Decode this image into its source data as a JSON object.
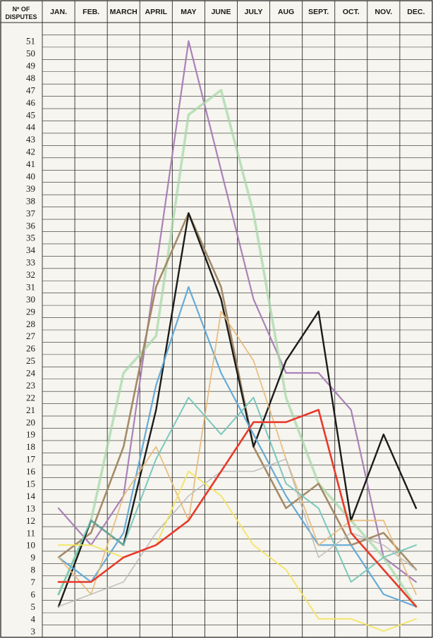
{
  "chart_data": {
    "type": "line",
    "title": "",
    "ylabel": "Nº OF DISPUTES",
    "xlabel": "",
    "categories": [
      "JAN.",
      "FEB.",
      "MARCH",
      "APRIL",
      "MAY",
      "JUNE",
      "JULY",
      "AUG",
      "SEPT.",
      "OCT.",
      "NOV.",
      "DEC."
    ],
    "y_ticks": [
      "3",
      "4",
      "5",
      "6",
      "7",
      "8",
      "9",
      "10",
      "11",
      "12",
      "13",
      "14",
      "15",
      "16",
      "17",
      "18",
      "19",
      "20",
      "21",
      "22",
      "23",
      "24",
      "25",
      "26",
      "27",
      "28",
      "29",
      "30",
      "31",
      "32",
      "33",
      "34",
      "35",
      "36",
      "37",
      "38",
      "39",
      "40",
      "41",
      "42",
      "43",
      "44",
      "45",
      "46",
      "47",
      "48",
      "49",
      "50",
      "51"
    ],
    "ylim": [
      2.5,
      52.5
    ],
    "grid": true,
    "legend": "none",
    "series": [
      {
        "color": "#a77bb5",
        "width": 2.2,
        "opacity": 0.95,
        "points": [
          [
            0,
            13
          ],
          [
            1,
            10
          ],
          [
            2,
            14
          ],
          [
            4,
            51
          ],
          [
            6,
            30
          ],
          [
            7,
            24
          ],
          [
            8,
            24
          ],
          [
            9,
            21
          ],
          [
            10,
            9
          ],
          [
            11,
            7
          ]
        ]
      },
      {
        "color": "#a8d8a8",
        "width": 3.5,
        "opacity": 0.75,
        "points": [
          [
            0,
            6
          ],
          [
            1,
            12
          ],
          [
            2,
            24
          ],
          [
            3,
            27
          ],
          [
            4,
            45
          ],
          [
            5,
            47
          ],
          [
            6,
            37
          ],
          [
            7,
            22
          ],
          [
            8,
            15
          ],
          [
            9,
            12
          ],
          [
            10,
            9
          ],
          [
            11,
            5
          ]
        ]
      },
      {
        "color": "#a08560",
        "width": 2.6,
        "opacity": 0.95,
        "points": [
          [
            0,
            9
          ],
          [
            1,
            11
          ],
          [
            2,
            18
          ],
          [
            3,
            31
          ],
          [
            4,
            37
          ],
          [
            5,
            31
          ],
          [
            6,
            18
          ],
          [
            7,
            13
          ],
          [
            8,
            15
          ],
          [
            9,
            10
          ],
          [
            10,
            11
          ],
          [
            11,
            8
          ]
        ]
      },
      {
        "color": "#1c1c1c",
        "width": 2.4,
        "opacity": 1,
        "points": [
          [
            0,
            5
          ],
          [
            1,
            12
          ],
          [
            2,
            10
          ],
          [
            3,
            21
          ],
          [
            4,
            37
          ],
          [
            5,
            30
          ],
          [
            6,
            18
          ],
          [
            7,
            25
          ],
          [
            8,
            29
          ],
          [
            9,
            12
          ],
          [
            10,
            19
          ],
          [
            11,
            13
          ]
        ]
      },
      {
        "color": "#5fa8d6",
        "width": 2.2,
        "opacity": 0.95,
        "points": [
          [
            0,
            9
          ],
          [
            1,
            7
          ],
          [
            2,
            11
          ],
          [
            3,
            23
          ],
          [
            4,
            31
          ],
          [
            5,
            24
          ],
          [
            6,
            19
          ],
          [
            7,
            14
          ],
          [
            8,
            10
          ],
          [
            9,
            10
          ],
          [
            10,
            6
          ],
          [
            11,
            5
          ]
        ]
      },
      {
        "color": "#e8b878",
        "width": 1.8,
        "opacity": 0.9,
        "points": [
          [
            0,
            9
          ],
          [
            1,
            6
          ],
          [
            2,
            14
          ],
          [
            3,
            18
          ],
          [
            4,
            12
          ],
          [
            5,
            29
          ],
          [
            6,
            25
          ],
          [
            7,
            17
          ],
          [
            8,
            10
          ],
          [
            9,
            12
          ],
          [
            10,
            12
          ],
          [
            11,
            6
          ]
        ]
      },
      {
        "color": "#6fc4b8",
        "width": 2,
        "opacity": 0.9,
        "points": [
          [
            0,
            6
          ],
          [
            1,
            12
          ],
          [
            2,
            10
          ],
          [
            3,
            17
          ],
          [
            4,
            22
          ],
          [
            5,
            19
          ],
          [
            6,
            22
          ],
          [
            7,
            15
          ],
          [
            8,
            13
          ],
          [
            9,
            7
          ],
          [
            10,
            9
          ],
          [
            11,
            10
          ]
        ]
      },
      {
        "color": "#b8b8b8",
        "width": 1.6,
        "opacity": 0.85,
        "points": [
          [
            0,
            5
          ],
          [
            1,
            6
          ],
          [
            2,
            7
          ],
          [
            3,
            11
          ],
          [
            4,
            14
          ],
          [
            5,
            16
          ],
          [
            6,
            16
          ],
          [
            7,
            17
          ],
          [
            8,
            9
          ],
          [
            9,
            11
          ],
          [
            10,
            10
          ],
          [
            11,
            8
          ]
        ]
      },
      {
        "color": "#f2e45a",
        "width": 1.8,
        "opacity": 0.95,
        "points": [
          [
            0,
            10
          ],
          [
            1,
            10
          ],
          [
            2,
            9
          ],
          [
            3,
            10
          ],
          [
            4,
            16
          ],
          [
            5,
            14
          ],
          [
            6,
            10
          ],
          [
            7,
            8
          ],
          [
            8,
            4
          ],
          [
            9,
            4
          ],
          [
            10,
            3
          ],
          [
            11,
            4
          ]
        ]
      },
      {
        "color": "#e8392a",
        "width": 2.6,
        "opacity": 1,
        "points": [
          [
            0,
            7
          ],
          [
            1,
            7
          ],
          [
            2,
            9
          ],
          [
            3,
            10
          ],
          [
            4,
            12
          ],
          [
            5,
            16
          ],
          [
            6,
            20
          ],
          [
            7,
            20
          ],
          [
            8,
            21
          ],
          [
            9,
            11
          ],
          [
            10,
            8
          ],
          [
            11,
            5
          ]
        ]
      }
    ]
  }
}
